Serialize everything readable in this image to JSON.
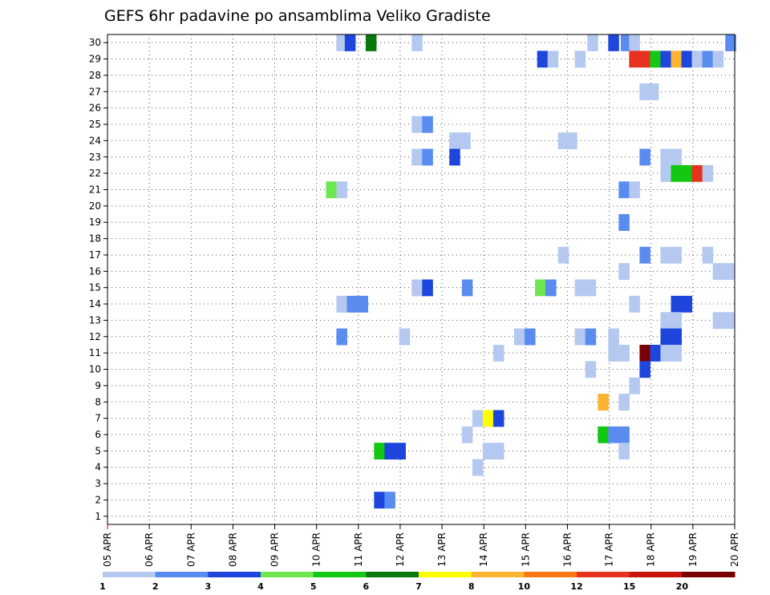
{
  "chart_data": {
    "type": "heatmap",
    "title": "GEFS 6hr padavine po ansamblima Veliko Gradiste",
    "xlabel": "",
    "ylabel": "",
    "x_ticks": [
      "05 APR",
      "06 APR",
      "07 APR",
      "08 APR",
      "09 APR",
      "10 APR",
      "11 APR",
      "12 APR",
      "13 APR",
      "14 APR",
      "15 APR",
      "16 APR",
      "17 APR",
      "18 APR",
      "19 APR",
      "20 APR"
    ],
    "y_ticks": [
      "1",
      "2",
      "3",
      "4",
      "5",
      "6",
      "7",
      "8",
      "9",
      "10",
      "11",
      "12",
      "13",
      "14",
      "15",
      "16",
      "17",
      "18",
      "19",
      "20",
      "21",
      "22",
      "23",
      "24",
      "25",
      "26",
      "27",
      "28",
      "29",
      "30"
    ],
    "xlim_days": [
      0,
      15
    ],
    "ylim": [
      0.5,
      30.5
    ],
    "grid": true,
    "colorbar": {
      "labels": [
        "1",
        "2",
        "3",
        "4",
        "5",
        "6",
        "7",
        "8",
        "10",
        "12",
        "15",
        "20"
      ],
      "colors": [
        "#b4c8f0",
        "#5a8cf0",
        "#1e46dc",
        "#6ee650",
        "#12c812",
        "#0a780a",
        "#ffff00",
        "#fab432",
        "#fa7814",
        "#e6321e",
        "#c8140a",
        "#780000"
      ]
    },
    "cells": [
      {
        "d": 5.6,
        "m": 30,
        "c": 0
      },
      {
        "d": 5.8,
        "m": 30,
        "c": 2
      },
      {
        "d": 6.3,
        "m": 30,
        "c": 5
      },
      {
        "d": 7.4,
        "m": 30,
        "c": 0
      },
      {
        "d": 11.6,
        "m": 30,
        "c": 0
      },
      {
        "d": 12.1,
        "m": 30,
        "c": 2
      },
      {
        "d": 12.4,
        "m": 30,
        "c": 1
      },
      {
        "d": 12.6,
        "m": 30,
        "c": 0
      },
      {
        "d": 14.9,
        "m": 30,
        "c": 1
      },
      {
        "d": 10.4,
        "m": 29,
        "c": 2
      },
      {
        "d": 10.65,
        "m": 29,
        "c": 0
      },
      {
        "d": 11.3,
        "m": 29,
        "c": 0
      },
      {
        "d": 12.6,
        "m": 29,
        "c": 9
      },
      {
        "d": 12.85,
        "m": 29,
        "c": 9
      },
      {
        "d": 13.1,
        "m": 29,
        "c": 4
      },
      {
        "d": 13.35,
        "m": 29,
        "c": 2
      },
      {
        "d": 13.6,
        "m": 29,
        "c": 7
      },
      {
        "d": 13.85,
        "m": 29,
        "c": 2
      },
      {
        "d": 14.1,
        "m": 29,
        "c": 0
      },
      {
        "d": 14.35,
        "m": 29,
        "c": 1
      },
      {
        "d": 14.6,
        "m": 29,
        "c": 0
      },
      {
        "d": 12.85,
        "m": 27,
        "c": 0
      },
      {
        "d": 13.05,
        "m": 27,
        "c": 0
      },
      {
        "d": 7.4,
        "m": 25,
        "c": 0
      },
      {
        "d": 7.65,
        "m": 25,
        "c": 1
      },
      {
        "d": 8.3,
        "m": 24,
        "c": 0
      },
      {
        "d": 8.55,
        "m": 24,
        "c": 0
      },
      {
        "d": 10.9,
        "m": 24,
        "c": 0
      },
      {
        "d": 11.1,
        "m": 24,
        "c": 0
      },
      {
        "d": 7.4,
        "m": 23,
        "c": 0
      },
      {
        "d": 7.65,
        "m": 23,
        "c": 1
      },
      {
        "d": 8.3,
        "m": 23,
        "c": 2
      },
      {
        "d": 12.85,
        "m": 23,
        "c": 1
      },
      {
        "d": 13.35,
        "m": 23,
        "c": 0
      },
      {
        "d": 13.6,
        "m": 23,
        "c": 0
      },
      {
        "d": 13.35,
        "m": 22,
        "c": 0
      },
      {
        "d": 13.6,
        "m": 22,
        "c": 4
      },
      {
        "d": 13.85,
        "m": 22,
        "c": 4
      },
      {
        "d": 14.1,
        "m": 22,
        "c": 9
      },
      {
        "d": 14.35,
        "m": 22,
        "c": 0
      },
      {
        "d": 5.35,
        "m": 21,
        "c": 3
      },
      {
        "d": 5.6,
        "m": 21,
        "c": 0
      },
      {
        "d": 12.35,
        "m": 21,
        "c": 1
      },
      {
        "d": 12.6,
        "m": 21,
        "c": 0
      },
      {
        "d": 12.35,
        "m": 19,
        "c": 1
      },
      {
        "d": 10.9,
        "m": 17,
        "c": 0
      },
      {
        "d": 12.85,
        "m": 17,
        "c": 1
      },
      {
        "d": 13.35,
        "m": 17,
        "c": 0
      },
      {
        "d": 13.6,
        "m": 17,
        "c": 0
      },
      {
        "d": 14.35,
        "m": 17,
        "c": 0
      },
      {
        "d": 12.35,
        "m": 16,
        "c": 0
      },
      {
        "d": 14.6,
        "m": 16,
        "c": 0
      },
      {
        "d": 14.85,
        "m": 16,
        "c": 0
      },
      {
        "d": 7.4,
        "m": 15,
        "c": 0
      },
      {
        "d": 7.65,
        "m": 15,
        "c": 2
      },
      {
        "d": 8.6,
        "m": 15,
        "c": 1
      },
      {
        "d": 10.35,
        "m": 15,
        "c": 3
      },
      {
        "d": 10.6,
        "m": 15,
        "c": 1
      },
      {
        "d": 11.3,
        "m": 15,
        "c": 0
      },
      {
        "d": 11.55,
        "m": 15,
        "c": 0
      },
      {
        "d": 5.6,
        "m": 14,
        "c": 0
      },
      {
        "d": 5.85,
        "m": 14,
        "c": 1
      },
      {
        "d": 6.1,
        "m": 14,
        "c": 1
      },
      {
        "d": 12.6,
        "m": 14,
        "c": 0
      },
      {
        "d": 13.6,
        "m": 14,
        "c": 2
      },
      {
        "d": 13.85,
        "m": 14,
        "c": 2
      },
      {
        "d": 13.35,
        "m": 13,
        "c": 0
      },
      {
        "d": 13.6,
        "m": 13,
        "c": 0
      },
      {
        "d": 14.6,
        "m": 13,
        "c": 0
      },
      {
        "d": 14.85,
        "m": 13,
        "c": 0
      },
      {
        "d": 5.6,
        "m": 12,
        "c": 1
      },
      {
        "d": 7.1,
        "m": 12,
        "c": 0
      },
      {
        "d": 9.85,
        "m": 12,
        "c": 0
      },
      {
        "d": 10.1,
        "m": 12,
        "c": 1
      },
      {
        "d": 11.3,
        "m": 12,
        "c": 0
      },
      {
        "d": 11.55,
        "m": 12,
        "c": 1
      },
      {
        "d": 12.1,
        "m": 12,
        "c": 0
      },
      {
        "d": 13.35,
        "m": 12,
        "c": 2
      },
      {
        "d": 13.6,
        "m": 12,
        "c": 2
      },
      {
        "d": 9.35,
        "m": 11,
        "c": 0
      },
      {
        "d": 12.1,
        "m": 11,
        "c": 0
      },
      {
        "d": 12.35,
        "m": 11,
        "c": 0
      },
      {
        "d": 12.85,
        "m": 11,
        "c": 11
      },
      {
        "d": 13.1,
        "m": 11,
        "c": 2
      },
      {
        "d": 13.35,
        "m": 11,
        "c": 0
      },
      {
        "d": 13.6,
        "m": 11,
        "c": 0
      },
      {
        "d": 11.55,
        "m": 10,
        "c": 0
      },
      {
        "d": 12.85,
        "m": 10,
        "c": 2
      },
      {
        "d": 12.6,
        "m": 9,
        "c": 0
      },
      {
        "d": 11.85,
        "m": 8,
        "c": 7
      },
      {
        "d": 12.35,
        "m": 8,
        "c": 0
      },
      {
        "d": 8.85,
        "m": 7,
        "c": 0
      },
      {
        "d": 9.1,
        "m": 7,
        "c": 6
      },
      {
        "d": 9.35,
        "m": 7,
        "c": 2
      },
      {
        "d": 8.6,
        "m": 6,
        "c": 0
      },
      {
        "d": 11.85,
        "m": 6,
        "c": 4
      },
      {
        "d": 12.1,
        "m": 6,
        "c": 1
      },
      {
        "d": 12.35,
        "m": 6,
        "c": 1
      },
      {
        "d": 6.5,
        "m": 5,
        "c": 4
      },
      {
        "d": 6.75,
        "m": 5,
        "c": 2
      },
      {
        "d": 7.0,
        "m": 5,
        "c": 2
      },
      {
        "d": 9.1,
        "m": 5,
        "c": 0
      },
      {
        "d": 9.35,
        "m": 5,
        "c": 0
      },
      {
        "d": 12.35,
        "m": 5,
        "c": 0
      },
      {
        "d": 8.85,
        "m": 4,
        "c": 0
      },
      {
        "d": 6.5,
        "m": 2,
        "c": 2
      },
      {
        "d": 6.75,
        "m": 2,
        "c": 1
      }
    ]
  }
}
